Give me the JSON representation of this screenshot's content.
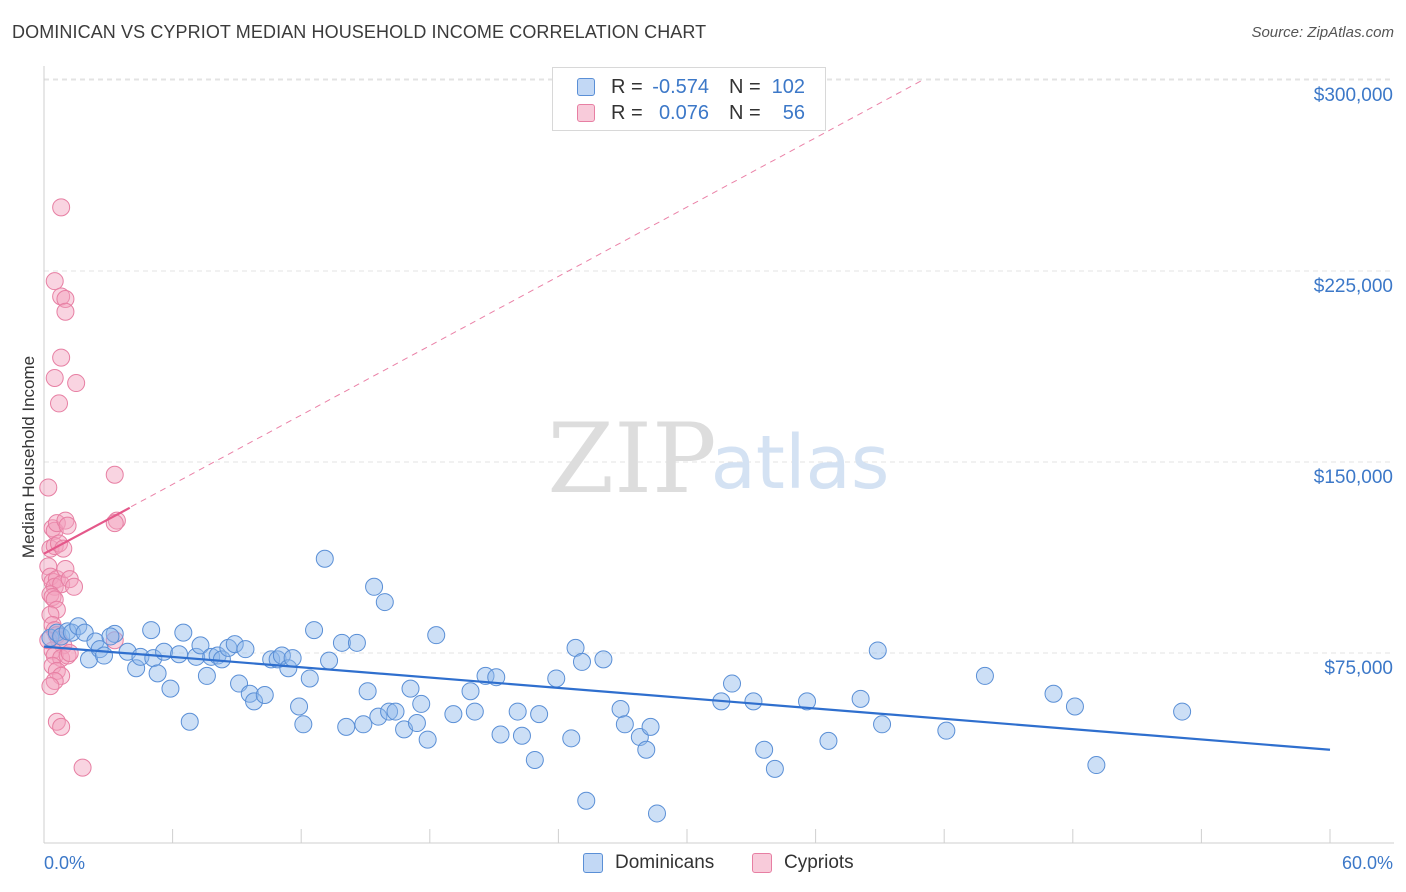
{
  "title": "DOMINICAN VS CYPRIOT MEDIAN HOUSEHOLD INCOME CORRELATION CHART",
  "source": "Source: ZipAtlas.com",
  "watermark": {
    "zip": "ZIP",
    "atlas": "atlas"
  },
  "legend": {
    "rows": [
      {
        "r_label": "R =",
        "r_value": "-0.574",
        "n_label": "N =",
        "n_value": "102",
        "color": "#8fb8ec"
      },
      {
        "r_label": "R =",
        "r_value": "0.076",
        "n_label": "N =",
        "n_value": "56",
        "color": "#f2a0bc"
      }
    ]
  },
  "bottom_legend": [
    {
      "label": "Dominicans",
      "color": "#8fb8ec"
    },
    {
      "label": "Cypriots",
      "color": "#f2a0bc"
    }
  ],
  "colors": {
    "blue_fill": "rgba(143,184,236,0.45)",
    "blue_stroke": "#5a8fd6",
    "blue_line": "#2f6fce",
    "pink_fill": "rgba(242,160,188,0.45)",
    "pink_stroke": "#e77fa3",
    "pink_line": "#e4588a",
    "grid": "#e3e3e3",
    "tick_text": "#3c78c8"
  },
  "chart_data": {
    "type": "scatter",
    "title": "DOMINICAN VS CYPRIOT MEDIAN HOUSEHOLD INCOME CORRELATION CHART",
    "xlabel": "",
    "ylabel": "Median Household Income",
    "xlim": [
      0,
      60
    ],
    "ylim": [
      5000,
      310000
    ],
    "x_tick_labels": [
      {
        "value": 0,
        "label": "0.0%"
      },
      {
        "value": 60,
        "label": "60.0%"
      }
    ],
    "y_ticks": [
      {
        "value": 75000,
        "label": "$75,000"
      },
      {
        "value": 150000,
        "label": "$150,000"
      },
      {
        "value": 225000,
        "label": "$225,000"
      },
      {
        "value": 300000,
        "label": "$300,000"
      }
    ],
    "series": [
      {
        "name": "Dominicans",
        "r": -0.574,
        "n": 102,
        "trend": {
          "x": [
            0,
            60
          ],
          "y": [
            77500,
            37000
          ]
        },
        "points": [
          [
            0.3,
            81000
          ],
          [
            0.6,
            83000
          ],
          [
            0.8,
            81500
          ],
          [
            1.1,
            83500
          ],
          [
            1.3,
            83000
          ],
          [
            1.6,
            85500
          ],
          [
            1.9,
            83000
          ],
          [
            2.1,
            72500
          ],
          [
            2.4,
            79500
          ],
          [
            2.6,
            76500
          ],
          [
            2.8,
            74000
          ],
          [
            3.3,
            82500
          ],
          [
            3.1,
            81500
          ],
          [
            3.9,
            75500
          ],
          [
            4.3,
            69000
          ],
          [
            4.5,
            73500
          ],
          [
            5.0,
            84000
          ],
          [
            5.1,
            73000
          ],
          [
            5.3,
            67000
          ],
          [
            5.6,
            75500
          ],
          [
            5.9,
            61000
          ],
          [
            6.3,
            74500
          ],
          [
            6.5,
            83000
          ],
          [
            6.8,
            48000
          ],
          [
            7.1,
            73500
          ],
          [
            7.3,
            78000
          ],
          [
            7.6,
            66000
          ],
          [
            7.8,
            73500
          ],
          [
            8.1,
            74000
          ],
          [
            8.3,
            72500
          ],
          [
            8.6,
            77000
          ],
          [
            8.9,
            78500
          ],
          [
            9.1,
            63000
          ],
          [
            9.4,
            76500
          ],
          [
            9.6,
            59000
          ],
          [
            9.8,
            56000
          ],
          [
            10.3,
            58500
          ],
          [
            10.6,
            72500
          ],
          [
            10.9,
            72500
          ],
          [
            11.1,
            74000
          ],
          [
            11.4,
            69000
          ],
          [
            11.6,
            73000
          ],
          [
            11.9,
            54000
          ],
          [
            12.1,
            47000
          ],
          [
            12.4,
            65000
          ],
          [
            12.6,
            84000
          ],
          [
            13.1,
            112000
          ],
          [
            13.3,
            72000
          ],
          [
            13.9,
            79000
          ],
          [
            14.1,
            46000
          ],
          [
            14.6,
            79000
          ],
          [
            14.9,
            47000
          ],
          [
            15.1,
            60000
          ],
          [
            15.4,
            101000
          ],
          [
            15.6,
            50000
          ],
          [
            15.9,
            95000
          ],
          [
            16.1,
            52000
          ],
          [
            16.4,
            52000
          ],
          [
            16.8,
            45000
          ],
          [
            17.1,
            61000
          ],
          [
            17.4,
            47500
          ],
          [
            17.6,
            55000
          ],
          [
            17.9,
            41000
          ],
          [
            18.3,
            82000
          ],
          [
            19.1,
            51000
          ],
          [
            19.9,
            60000
          ],
          [
            20.1,
            52000
          ],
          [
            20.6,
            66000
          ],
          [
            21.1,
            65500
          ],
          [
            21.3,
            43000
          ],
          [
            22.1,
            52000
          ],
          [
            22.3,
            42500
          ],
          [
            22.9,
            33000
          ],
          [
            23.1,
            51000
          ],
          [
            23.9,
            65000
          ],
          [
            24.6,
            41500
          ],
          [
            24.8,
            77000
          ],
          [
            25.1,
            71500
          ],
          [
            25.3,
            17000
          ],
          [
            26.1,
            72500
          ],
          [
            26.9,
            53000
          ],
          [
            27.1,
            47000
          ],
          [
            27.8,
            42000
          ],
          [
            28.1,
            37000
          ],
          [
            28.3,
            46000
          ],
          [
            31.6,
            56000
          ],
          [
            32.1,
            63000
          ],
          [
            33.1,
            56000
          ],
          [
            33.6,
            37000
          ],
          [
            34.1,
            29500
          ],
          [
            35.6,
            56000
          ],
          [
            36.6,
            40500
          ],
          [
            38.1,
            57000
          ],
          [
            38.9,
            76000
          ],
          [
            39.1,
            47000
          ],
          [
            42.1,
            44500
          ],
          [
            43.9,
            66000
          ],
          [
            47.1,
            59000
          ],
          [
            48.1,
            54000
          ],
          [
            49.1,
            31000
          ],
          [
            53.1,
            52000
          ],
          [
            28.6,
            12000
          ]
        ]
      },
      {
        "name": "Cypriots",
        "r": 0.076,
        "n": 56,
        "trend": {
          "x": [
            0,
            4
          ],
          "y": [
            114000,
            132000
          ]
        },
        "trend_extended": {
          "x": [
            0,
            41
          ],
          "y": [
            114000,
            300000
          ]
        },
        "points": [
          [
            0.2,
            140000
          ],
          [
            0.4,
            124000
          ],
          [
            0.5,
            123000
          ],
          [
            0.6,
            126000
          ],
          [
            0.3,
            116000
          ],
          [
            0.5,
            117000
          ],
          [
            0.7,
            118000
          ],
          [
            0.9,
            116000
          ],
          [
            1.0,
            127000
          ],
          [
            1.1,
            125000
          ],
          [
            0.2,
            109000
          ],
          [
            0.3,
            105000
          ],
          [
            0.4,
            103000
          ],
          [
            0.6,
            104000
          ],
          [
            0.5,
            101000
          ],
          [
            0.8,
            102000
          ],
          [
            1.0,
            108000
          ],
          [
            1.2,
            104000
          ],
          [
            1.4,
            101000
          ],
          [
            0.3,
            98000
          ],
          [
            0.4,
            97000
          ],
          [
            0.5,
            96000
          ],
          [
            0.6,
            92000
          ],
          [
            0.3,
            90000
          ],
          [
            0.4,
            86000
          ],
          [
            0.5,
            84000
          ],
          [
            0.6,
            82000
          ],
          [
            0.7,
            80000
          ],
          [
            0.9,
            78000
          ],
          [
            0.4,
            76000
          ],
          [
            0.5,
            74000
          ],
          [
            0.8,
            73000
          ],
          [
            1.1,
            74000
          ],
          [
            1.2,
            75000
          ],
          [
            0.4,
            70000
          ],
          [
            0.6,
            68000
          ],
          [
            0.8,
            66000
          ],
          [
            0.5,
            64000
          ],
          [
            0.3,
            62000
          ],
          [
            0.6,
            48000
          ],
          [
            0.8,
            46000
          ],
          [
            1.8,
            30000
          ],
          [
            0.8,
            250000
          ],
          [
            0.5,
            221000
          ],
          [
            0.8,
            215000
          ],
          [
            1.0,
            214000
          ],
          [
            1.0,
            209000
          ],
          [
            0.8,
            191000
          ],
          [
            0.5,
            183000
          ],
          [
            1.5,
            181000
          ],
          [
            0.7,
            173000
          ],
          [
            3.3,
            145000
          ],
          [
            3.4,
            127000
          ],
          [
            3.3,
            126000
          ],
          [
            3.3,
            80000
          ],
          [
            0.2,
            80000
          ]
        ]
      }
    ]
  }
}
